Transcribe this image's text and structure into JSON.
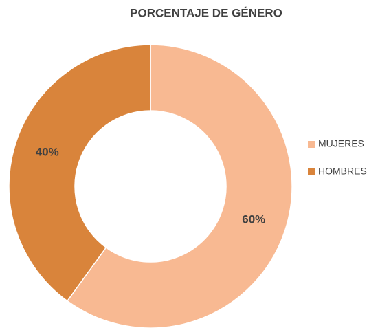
{
  "chart_data": {
    "type": "donut",
    "title": "PORCENTAJE DE GÉNERO",
    "categories": [
      "MUJERES",
      "HOMBRES"
    ],
    "values": [
      60,
      40
    ],
    "value_labels": [
      "60%",
      "40%"
    ],
    "colors": [
      "#f8b992",
      "#d9843b"
    ],
    "legend": "right"
  }
}
